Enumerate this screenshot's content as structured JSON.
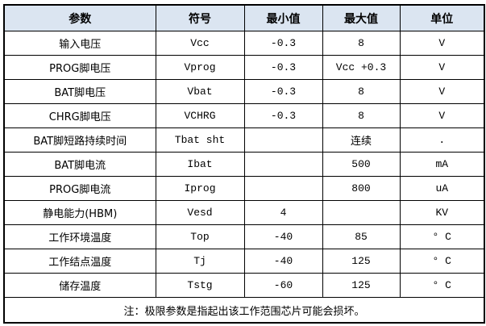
{
  "table": {
    "headers": [
      "参数",
      "符号",
      "最小值",
      "最大值",
      "单位"
    ],
    "rows": [
      [
        "输入电压",
        "Vcc",
        "-0.3",
        "8",
        "V"
      ],
      [
        "PROG脚电压",
        "Vprog",
        "-0.3",
        "Vcc +0.3",
        "V"
      ],
      [
        "BAT脚电压",
        "Vbat",
        "-0.3",
        "8",
        "V"
      ],
      [
        "CHRG脚电压",
        "VCHRG",
        "-0.3",
        "8",
        "V"
      ],
      [
        "BAT脚短路持续时间",
        "Tbat sht",
        "",
        "连续",
        "."
      ],
      [
        "BAT脚电流",
        "Ibat",
        "",
        "500",
        "mA"
      ],
      [
        "PROG脚电流",
        "Iprog",
        "",
        "800",
        "uA"
      ],
      [
        "静电能力(HBM)",
        "Vesd",
        "4",
        "",
        "KV"
      ],
      [
        "工作环境温度",
        "Top",
        "-40",
        "85",
        "° C"
      ],
      [
        "工作结点温度",
        "Tj",
        "-40",
        "125",
        "° C"
      ],
      [
        "储存温度",
        "Tstg",
        "-60",
        "125",
        "° C"
      ]
    ],
    "note": "注：极限参数是指起出该工作范围芯片可能会损坏。"
  },
  "colors": {
    "header_bg": "#dbe5f1"
  }
}
